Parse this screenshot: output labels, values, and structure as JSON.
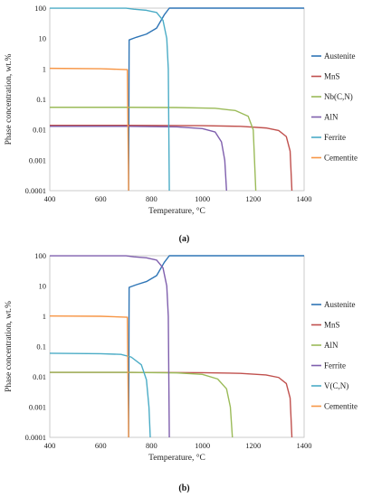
{
  "chart_data": [
    {
      "type": "line",
      "panel_label": "(a)",
      "xlabel": "Temperature, °C",
      "ylabel": "Phase concentration, wt.%",
      "xlim": [
        400,
        1400
      ],
      "ylim": [
        0.0001,
        100
      ],
      "yscale": "log",
      "xticks": [
        400,
        600,
        800,
        1000,
        1200,
        1400
      ],
      "yticks": [
        0.0001,
        0.001,
        0.01,
        0.1,
        1,
        10,
        100
      ],
      "ytick_labels": [
        "0.0001",
        "0.001",
        "0.01",
        "0.1",
        "1",
        "10",
        "100"
      ],
      "grid": false,
      "legend": "right",
      "series": [
        {
          "name": "Austenite",
          "color": "#2e75b6",
          "points": [
            [
              710,
              0.0001
            ],
            [
              712,
              9
            ],
            [
              740,
              11
            ],
            [
              780,
              14
            ],
            [
              820,
              22
            ],
            [
              850,
              60
            ],
            [
              870,
              100
            ],
            [
              1400,
              100
            ]
          ]
        },
        {
          "name": "MnS",
          "color": "#c0504d",
          "points": [
            [
              400,
              0.014
            ],
            [
              700,
              0.014
            ],
            [
              1000,
              0.0137
            ],
            [
              1150,
              0.013
            ],
            [
              1250,
              0.0115
            ],
            [
              1300,
              0.0095
            ],
            [
              1330,
              0.006
            ],
            [
              1345,
              0.002
            ],
            [
              1352,
              0.0001
            ]
          ]
        },
        {
          "name": "Nb(C,N)",
          "color": "#9bbb59",
          "points": [
            [
              400,
              0.055
            ],
            [
              700,
              0.055
            ],
            [
              900,
              0.054
            ],
            [
              1050,
              0.051
            ],
            [
              1130,
              0.043
            ],
            [
              1180,
              0.028
            ],
            [
              1200,
              0.01
            ],
            [
              1210,
              0.0001
            ]
          ]
        },
        {
          "name": "AlN",
          "color": "#7f5fad",
          "points": [
            [
              400,
              0.013
            ],
            [
              700,
              0.013
            ],
            [
              900,
              0.0125
            ],
            [
              1000,
              0.011
            ],
            [
              1050,
              0.0085
            ],
            [
              1075,
              0.004
            ],
            [
              1088,
              0.001
            ],
            [
              1095,
              0.0001
            ]
          ]
        },
        {
          "name": "Ferrite",
          "color": "#4bacc6",
          "points": [
            [
              400,
              99.5
            ],
            [
              700,
              99.5
            ],
            [
              730,
              92
            ],
            [
              780,
              85
            ],
            [
              820,
              72
            ],
            [
              845,
              40
            ],
            [
              860,
              10
            ],
            [
              866,
              1
            ],
            [
              870,
              0.0001
            ]
          ]
        },
        {
          "name": "Cementite",
          "color": "#f79646",
          "points": [
            [
              400,
              1.05
            ],
            [
              600,
              1.02
            ],
            [
              705,
              0.95
            ],
            [
              710,
              0.0001
            ]
          ]
        }
      ]
    },
    {
      "type": "line",
      "panel_label": "(b)",
      "xlabel": "Temperature, °C",
      "ylabel": "Phase concentration, wt.%",
      "xlim": [
        400,
        1400
      ],
      "ylim": [
        0.0001,
        100
      ],
      "yscale": "log",
      "xticks": [
        400,
        600,
        800,
        1000,
        1200,
        1400
      ],
      "yticks": [
        0.0001,
        0.001,
        0.01,
        0.1,
        1,
        10,
        100
      ],
      "ytick_labels": [
        "0.0001",
        "0.001",
        "0.01",
        "0.1",
        "1",
        "10",
        "100"
      ],
      "grid": false,
      "legend": "right",
      "series": [
        {
          "name": "Austenite",
          "color": "#2e75b6",
          "points": [
            [
              710,
              0.0001
            ],
            [
              712,
              9
            ],
            [
              740,
              11
            ],
            [
              780,
              14
            ],
            [
              820,
              22
            ],
            [
              850,
              60
            ],
            [
              870,
              100
            ],
            [
              1400,
              100
            ]
          ]
        },
        {
          "name": "MnS",
          "color": "#c0504d",
          "points": [
            [
              400,
              0.014
            ],
            [
              700,
              0.014
            ],
            [
              1000,
              0.0137
            ],
            [
              1150,
              0.013
            ],
            [
              1250,
              0.0115
            ],
            [
              1300,
              0.0095
            ],
            [
              1330,
              0.006
            ],
            [
              1345,
              0.002
            ],
            [
              1352,
              0.0001
            ]
          ]
        },
        {
          "name": "AlN",
          "color": "#9bbb59",
          "points": [
            [
              400,
              0.014
            ],
            [
              700,
              0.014
            ],
            [
              900,
              0.0135
            ],
            [
              1000,
              0.012
            ],
            [
              1060,
              0.0085
            ],
            [
              1095,
              0.004
            ],
            [
              1110,
              0.001
            ],
            [
              1118,
              0.0001
            ]
          ]
        },
        {
          "name": "Ferrite",
          "color": "#7f5fad",
          "points": [
            [
              400,
              99.5
            ],
            [
              700,
              99.5
            ],
            [
              730,
              92
            ],
            [
              780,
              85
            ],
            [
              820,
              72
            ],
            [
              845,
              40
            ],
            [
              860,
              10
            ],
            [
              866,
              1
            ],
            [
              870,
              0.0001
            ]
          ]
        },
        {
          "name": "V(C,N)",
          "color": "#4bacc6",
          "points": [
            [
              400,
              0.06
            ],
            [
              600,
              0.058
            ],
            [
              680,
              0.055
            ],
            [
              720,
              0.045
            ],
            [
              760,
              0.025
            ],
            [
              780,
              0.008
            ],
            [
              790,
              0.001
            ],
            [
              795,
              0.0001
            ]
          ]
        },
        {
          "name": "Cementite",
          "color": "#f79646",
          "points": [
            [
              400,
              1.02
            ],
            [
              600,
              1.0
            ],
            [
              705,
              0.93
            ],
            [
              710,
              0.0001
            ]
          ]
        }
      ]
    }
  ]
}
